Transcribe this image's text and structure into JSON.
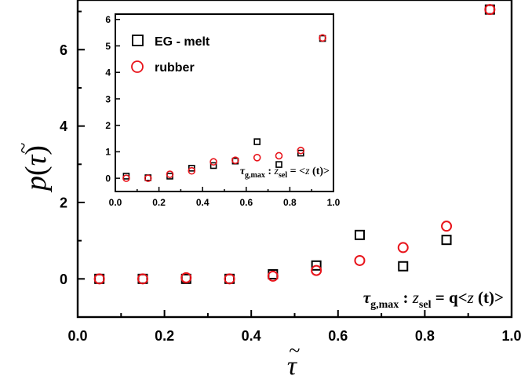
{
  "chart_data": [
    {
      "type": "scatter",
      "xlabel": "τ̃",
      "ylabel": "p(τ̃)",
      "xlim": [
        0.0,
        1.0
      ],
      "ylim": [
        -1.0,
        7.3
      ],
      "xticks": [
        "0.0",
        "0.2",
        "0.4",
        "0.6",
        "0.8",
        "1.0"
      ],
      "yticks": [
        "0",
        "2",
        "4",
        "6"
      ],
      "annotation": {
        "tau": "τ",
        "tau_sub": "g,max",
        "colon": " : ",
        "z": "z",
        "z_sub": "sel",
        "rhs": " = q<",
        "rhs_z": "z",
        "rhs_end": " (t)>"
      },
      "series": [
        {
          "name": "EG - melt",
          "marker": "square",
          "color": "#000000",
          "x": [
            0.05,
            0.15,
            0.25,
            0.35,
            0.45,
            0.55,
            0.65,
            0.75,
            0.85,
            0.95
          ],
          "y": [
            0.0,
            0.0,
            0.0,
            0.0,
            0.12,
            0.35,
            1.15,
            0.33,
            1.02,
            7.05
          ]
        },
        {
          "name": "rubber",
          "marker": "circle",
          "color": "#e8141b",
          "x": [
            0.05,
            0.15,
            0.25,
            0.35,
            0.45,
            0.55,
            0.65,
            0.75,
            0.85,
            0.95
          ],
          "y": [
            0.0,
            0.0,
            0.03,
            0.0,
            0.07,
            0.22,
            0.48,
            0.82,
            1.38,
            7.05
          ]
        }
      ]
    },
    {
      "type": "scatter",
      "inset": true,
      "xlim": [
        0.0,
        1.0
      ],
      "ylim": [
        -0.5,
        6.2
      ],
      "xticks": [
        "0.0",
        "0.2",
        "0.4",
        "0.6",
        "0.8",
        "1.0"
      ],
      "yticks": [
        "0",
        "1",
        "2",
        "3",
        "4",
        "5",
        "6"
      ],
      "legend": [
        "EG - melt",
        "rubber"
      ],
      "annotation": {
        "tau": "τ",
        "tau_sub": "g,max",
        "colon": " : ",
        "z": "z",
        "z_sub": "sel",
        "rhs": " = <",
        "rhs_z": "z",
        "rhs_end": " (t)>"
      },
      "series": [
        {
          "name": "EG - melt",
          "marker": "square",
          "color": "#000000",
          "x": [
            0.05,
            0.15,
            0.25,
            0.35,
            0.45,
            0.55,
            0.65,
            0.75,
            0.85,
            0.95
          ],
          "y": [
            0.08,
            0.02,
            0.08,
            0.38,
            0.48,
            0.65,
            1.38,
            0.52,
            0.95,
            5.28
          ]
        },
        {
          "name": "rubber",
          "marker": "circle",
          "color": "#e8141b",
          "x": [
            0.05,
            0.15,
            0.25,
            0.35,
            0.45,
            0.55,
            0.65,
            0.75,
            0.85,
            0.95
          ],
          "y": [
            0.0,
            0.0,
            0.15,
            0.28,
            0.62,
            0.68,
            0.78,
            0.85,
            1.05,
            5.3
          ]
        }
      ]
    }
  ]
}
